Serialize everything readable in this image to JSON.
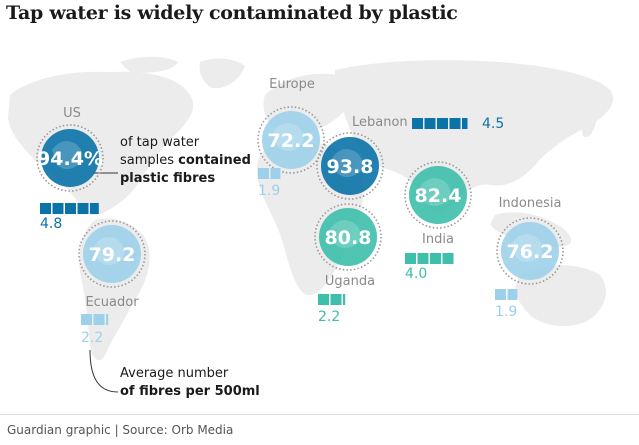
{
  "title": "Tap water is widely contaminated by plastic",
  "source": "Guardian graphic | Source: Orb Media",
  "legend": {
    "bubble_text_1": "of tap water",
    "bubble_text_2_plain": "samples ",
    "bubble_text_2_bold": "contained",
    "bubble_text_3": "plastic fibres",
    "fibres_text_1": "Average number",
    "fibres_text_2": "of fibres per 500ml"
  },
  "colors": {
    "dark_blue": "#0a73a8",
    "light_blue": "#9dd0ea",
    "teal": "#3dbfab",
    "map": "#ececec"
  },
  "chart_data": {
    "type": "bubble-map",
    "measures": [
      "% of tap water samples containing plastic fibres",
      "Average number of fibres per 500ml"
    ],
    "regions": [
      {
        "name": "US",
        "pct": 94.4,
        "pct_label": "94.4%",
        "fibres": 4.8,
        "fibres_label": "4.8",
        "color": "dark_blue"
      },
      {
        "name": "Europe",
        "pct": 72.2,
        "pct_label": "72.2",
        "fibres": 1.9,
        "fibres_label": "1.9",
        "color": "light_blue"
      },
      {
        "name": "Lebanon",
        "pct": 93.8,
        "pct_label": "93.8",
        "fibres": 4.5,
        "fibres_label": "4.5",
        "color": "dark_blue"
      },
      {
        "name": "India",
        "pct": 82.4,
        "pct_label": "82.4",
        "fibres": 4.0,
        "fibres_label": "4.0",
        "color": "teal"
      },
      {
        "name": "Indonesia",
        "pct": 76.2,
        "pct_label": "76.2",
        "fibres": 1.9,
        "fibres_label": "1.9",
        "color": "light_blue"
      },
      {
        "name": "Uganda",
        "pct": 80.8,
        "pct_label": "80.8",
        "fibres": 2.2,
        "fibres_label": "2.2",
        "color": "teal"
      },
      {
        "name": "Ecuador",
        "pct": 79.2,
        "pct_label": "79.2",
        "fibres": 2.2,
        "fibres_label": "2.2",
        "color": "light_blue"
      }
    ]
  }
}
